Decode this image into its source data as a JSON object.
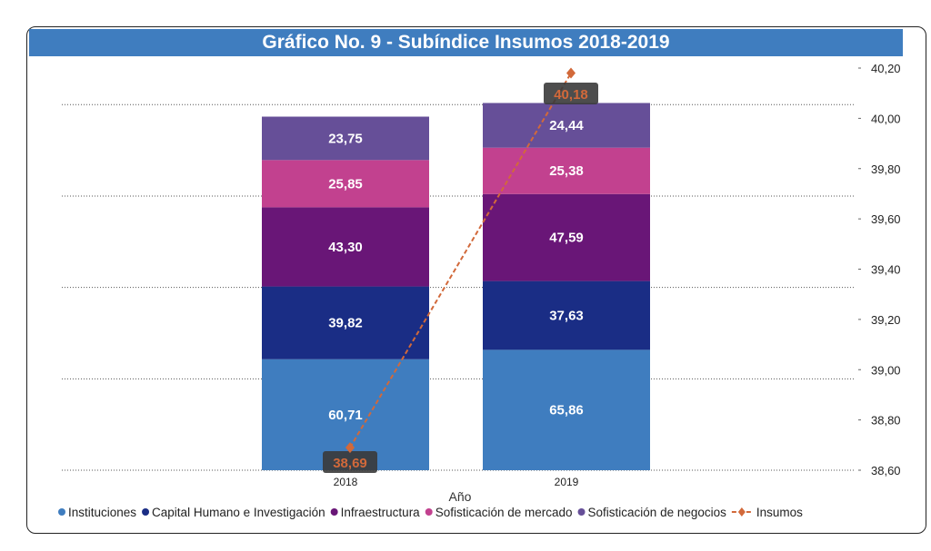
{
  "chart_data": {
    "type": "bar",
    "title": "Gráfico No. 9 - Subíndice Insumos 2018-2019",
    "xlabel": "Año",
    "categories": [
      "2018",
      "2019"
    ],
    "series": [
      {
        "name": "Instituciones",
        "values": [
          60.71,
          65.86
        ],
        "color": "#3f7dbf",
        "labels": [
          "60,71",
          "65,86"
        ]
      },
      {
        "name": "Capital Humano e Investigación",
        "values": [
          39.82,
          37.63
        ],
        "color": "#1a2d85",
        "labels": [
          "39,82",
          "37,63"
        ]
      },
      {
        "name": "Infraestructura",
        "values": [
          43.3,
          47.59
        ],
        "color": "#691677",
        "labels": [
          "43,30",
          "47,59"
        ]
      },
      {
        "name": "Sofisticación de mercado",
        "values": [
          25.85,
          25.38
        ],
        "color": "#c2418f",
        "labels": [
          "25,85",
          "25,38"
        ]
      },
      {
        "name": "Sofisticación de negocios",
        "values": [
          23.75,
          24.44
        ],
        "color": "#664f98",
        "labels": [
          "23,75",
          "24,44"
        ]
      }
    ],
    "line": {
      "name": "Insumos",
      "values": [
        38.69,
        40.18
      ],
      "labels": [
        "38,69",
        "40,18"
      ],
      "color": "#d2693a"
    },
    "left_ylim": [
      0,
      220
    ],
    "right_ylim": [
      38.6,
      40.2
    ],
    "right_ticks": [
      "38,60",
      "38,80",
      "39,00",
      "39,20",
      "39,40",
      "39,60",
      "39,80",
      "40,00",
      "40,20"
    ],
    "grid": true,
    "legend": "bottom"
  }
}
